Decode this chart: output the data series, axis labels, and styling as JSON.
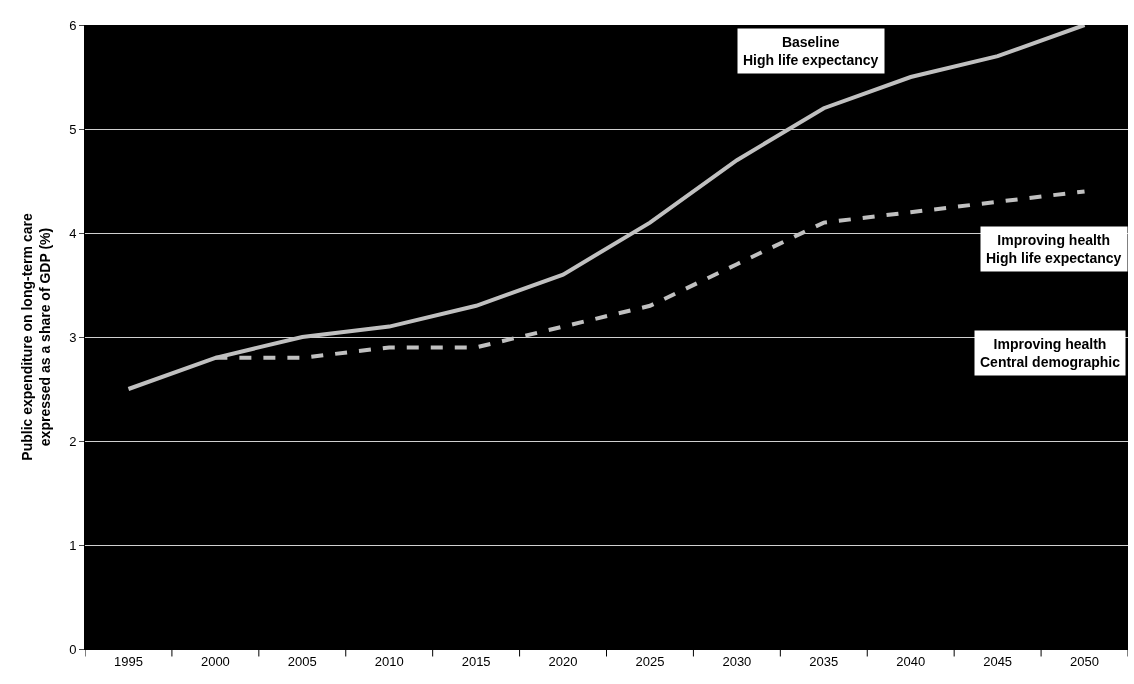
{
  "chart_data": {
    "type": "line",
    "ylabel": "Public expenditure on long-term care\nexpressed as a share of GDP (%)",
    "categories": [
      "1995",
      "2000",
      "2005",
      "2010",
      "2015",
      "2020",
      "2025",
      "2030",
      "2035",
      "2040",
      "2045",
      "2050"
    ],
    "series": [
      {
        "name": "Baseline\nHigh life expectancy",
        "color": "#c0c0c0",
        "line_style": "solid",
        "values": [
          2.5,
          2.8,
          3.0,
          3.1,
          3.3,
          3.6,
          4.1,
          4.7,
          5.2,
          5.5,
          5.7,
          6.0
        ]
      },
      {
        "name": "Improving health\nHigh life expectancy",
        "color": "#c0c0c0",
        "line_style": "dashed",
        "values": [
          null,
          2.8,
          2.8,
          2.9,
          2.9,
          3.1,
          3.3,
          3.7,
          4.1,
          4.2,
          4.3,
          4.4
        ]
      }
    ],
    "annotations": [
      "Improving health\nCentral demographic"
    ],
    "ylim": [
      0,
      6
    ],
    "yticks": [
      0,
      1,
      2,
      3,
      4,
      5,
      6
    ],
    "grid": "y",
    "legend": false,
    "marker": "none"
  }
}
